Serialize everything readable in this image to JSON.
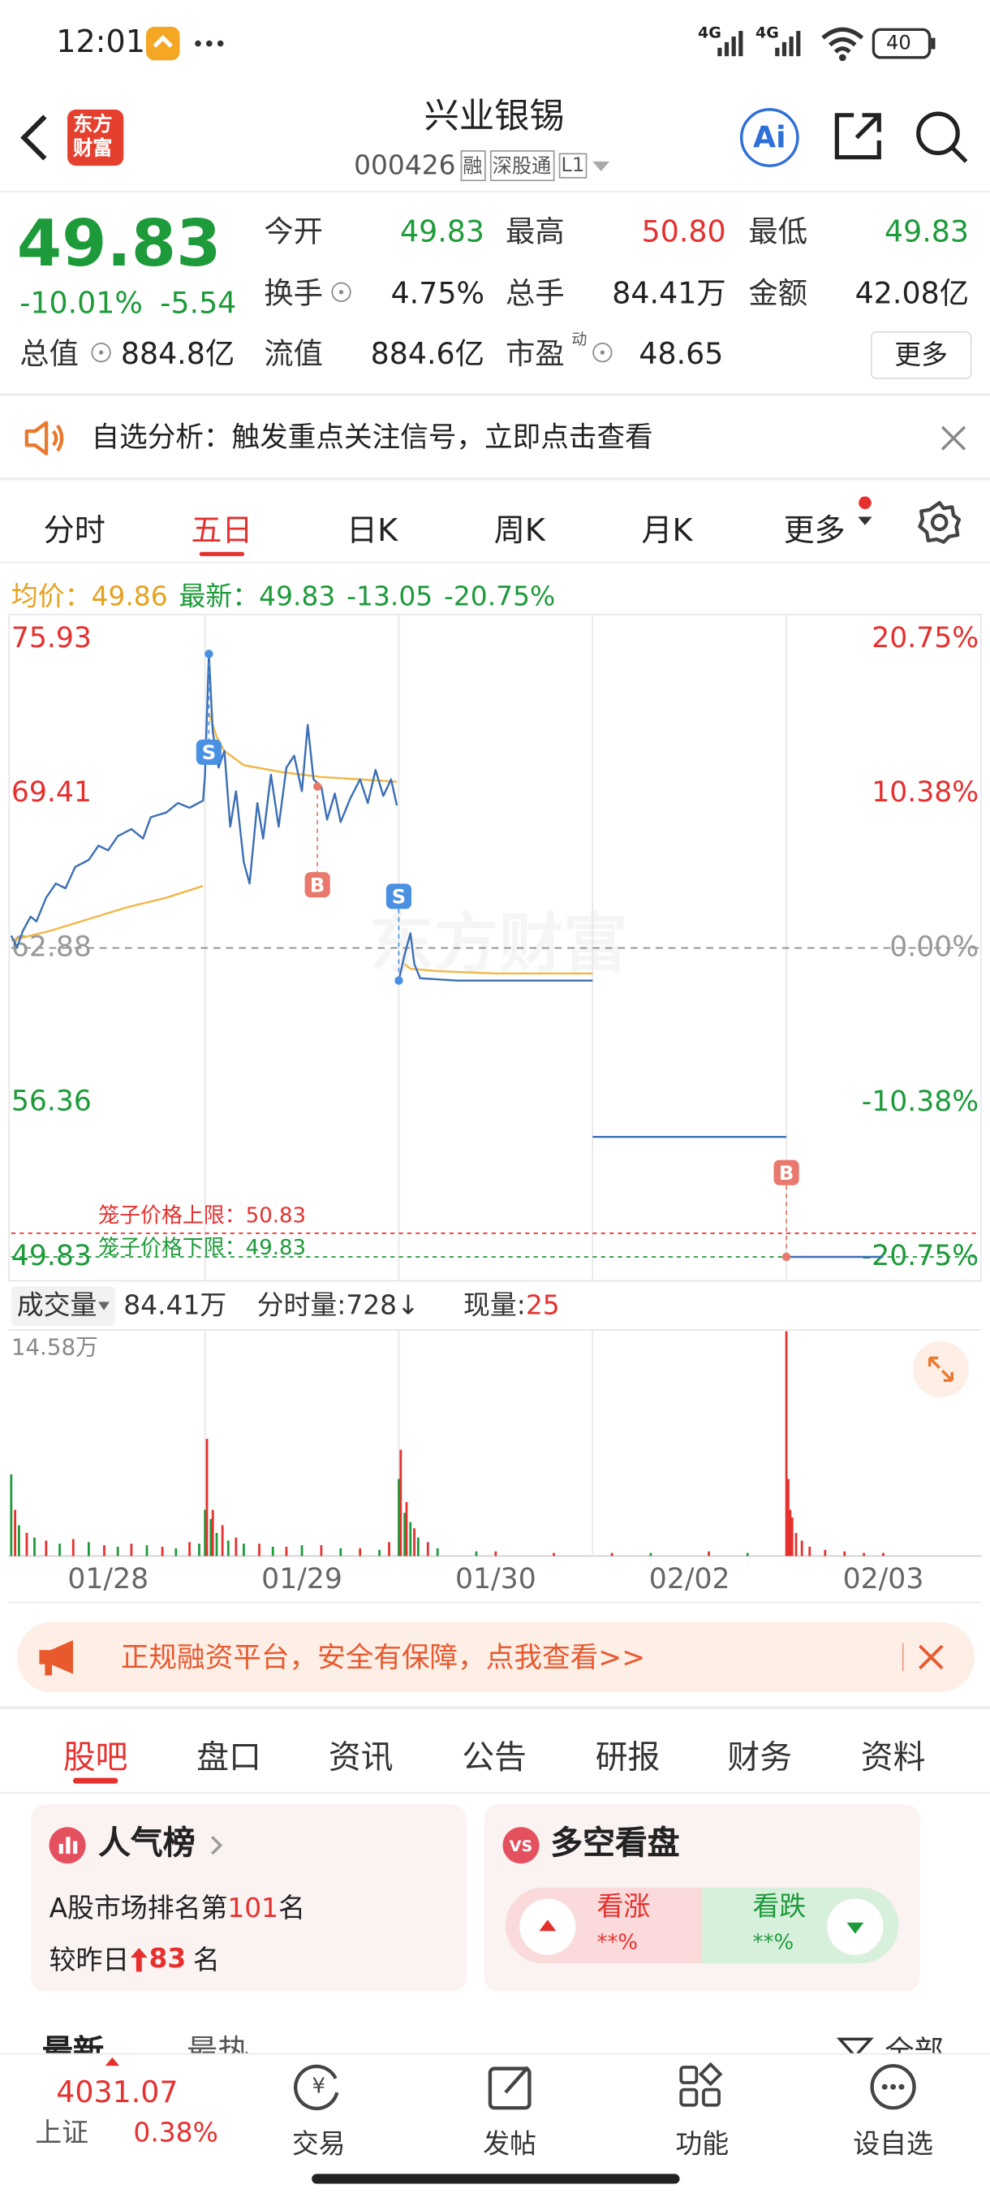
{
  "status_bar": {
    "time": "12:01",
    "network": [
      "4G",
      "4G"
    ],
    "battery": "40"
  },
  "header": {
    "logo": [
      "东方",
      "财富"
    ],
    "title": "兴业银锡",
    "code": "000426",
    "tags": [
      "融",
      "深股通",
      "L1"
    ],
    "ai": "Ai"
  },
  "quote": {
    "price": "49.83",
    "change_pct": "-10.01%",
    "change": "-5.54",
    "fields": [
      {
        "label": "今开",
        "value": "49.83"
      },
      {
        "label": "最高",
        "value": "50.80"
      },
      {
        "label": "最低",
        "value": "49.83"
      },
      {
        "label": "换手",
        "value": "4.75%"
      },
      {
        "label": "总手",
        "value": "84.41万"
      },
      {
        "label": "金额",
        "value": "42.08亿"
      },
      {
        "label": "总值",
        "value": "884.8亿"
      },
      {
        "label": "流值",
        "value": "884.6亿"
      },
      {
        "label": "市盈",
        "sup": "动",
        "value": "48.65"
      }
    ],
    "more": "更多"
  },
  "alert": "自选分析：触发重点关注信号，立即点击查看",
  "period_tabs": [
    "分时",
    "五日",
    "日K",
    "周K",
    "月K",
    "更多"
  ],
  "chart_data": [
    {
      "type": "line",
      "summary": [
        {
          "text": "均价：",
          "color": "#e6a11f"
        },
        {
          "text": "49.86",
          "color": "#e6a11f"
        },
        {
          "text": "最新：",
          "color": "#1d9a3a"
        },
        {
          "text": "49.83",
          "color": "#1d9a3a"
        },
        {
          "text": "-13.05",
          "color": "#1d9a3a"
        },
        {
          "text": "-20.75%",
          "color": "#1d9a3a"
        }
      ],
      "watermark": "东方财富",
      "xlim": [
        0,
        5
      ],
      "ylim": [
        49.83,
        75.93
      ],
      "yticks": [
        75.93,
        69.41,
        62.88,
        56.36,
        49.83
      ],
      "y2lim": [
        -20.75,
        20.75
      ],
      "y2ticks": [
        {
          "value": 20.75,
          "label": "20.75%"
        },
        {
          "value": 10.38,
          "label": "10.38%"
        },
        {
          "value": 0,
          "label": "0.00%"
        },
        {
          "value": -10.38,
          "label": "-10.38%"
        },
        {
          "value": -20.75,
          "label": "-20.75%"
        }
      ],
      "baseline": 62.88,
      "up_color": "#e5302e",
      "down_color": "#1d9a3a",
      "limits": [
        {
          "label": "笼子价格上限：50.83",
          "value": 50.83,
          "color": "#e5302e"
        },
        {
          "label": "笼子价格下限：49.83",
          "value": 49.83,
          "color": "#1d9a3a"
        }
      ],
      "series": [
        {
          "color": "#3b6fb6",
          "x": [
            0,
            0.03,
            0.06,
            0.1,
            0.13,
            0.18,
            0.23,
            0.28,
            0.33,
            0.4,
            0.45,
            0.5,
            0.55,
            0.62,
            0.68,
            0.72,
            0.8,
            0.86,
            0.92,
            0.99,
            1.0,
            1.02,
            1.04,
            1.07,
            1.1,
            1.13,
            1.16,
            1.2,
            1.23,
            1.27,
            1.3,
            1.34,
            1.38,
            1.42,
            1.46,
            1.5,
            1.53,
            1.56,
            1.6,
            1.63,
            1.67,
            1.7,
            1.75,
            1.8,
            1.84,
            1.88,
            1.92,
            1.96,
            1.99,
            2.0,
            2.0,
            2.03,
            2.06,
            2.08,
            2.11,
            2.3,
            3.0,
            3.0,
            3.0,
            4.0,
            4.0,
            4.0,
            4.5
          ],
          "values": [
            63.4,
            62.9,
            63.6,
            64.2,
            64.0,
            65.0,
            65.6,
            65.4,
            66.3,
            66.6,
            67.2,
            67.0,
            67.6,
            67.9,
            67.5,
            68.4,
            68.6,
            69.0,
            68.8,
            69.1,
            70.2,
            75.3,
            72.0,
            70.5,
            71.2,
            68.0,
            69.5,
            66.5,
            65.6,
            69.0,
            67.5,
            70.2,
            68.0,
            70.5,
            71.0,
            69.5,
            72.3,
            70.0,
            69.7,
            68.3,
            69.4,
            68.2,
            69.2,
            70.0,
            69.0,
            70.4,
            69.3,
            70.0,
            68.9,
            null,
            61.5,
            62.6,
            63.5,
            62.2,
            61.6,
            61.5,
            61.5,
            null,
            54.9,
            54.9,
            null,
            49.83,
            49.83
          ]
        },
        {
          "color": "#f0b848",
          "x": [
            0,
            0.2,
            0.4,
            0.6,
            0.8,
            0.99,
            1.0,
            1.02,
            1.06,
            1.1,
            1.2,
            1.4,
            1.6,
            1.8,
            1.99,
            2.0,
            2.03,
            2.06,
            2.2,
            2.5,
            3.0
          ],
          "values": [
            63.2,
            63.6,
            64.1,
            64.6,
            65.0,
            65.5,
            null,
            72.8,
            71.8,
            71.2,
            70.6,
            70.3,
            70.1,
            70.0,
            69.9,
            null,
            62.2,
            62.0,
            61.9,
            61.8,
            61.8
          ]
        }
      ],
      "markers": [
        {
          "label": "S",
          "x": 1.02,
          "y": 75.3,
          "color": "#4a90e2",
          "side": "below"
        },
        {
          "label": "B",
          "x": 1.58,
          "y": 69.7,
          "color": "#e8796c",
          "side": "below"
        },
        {
          "label": "S",
          "x": 2.0,
          "y": 61.5,
          "color": "#4a90e2",
          "side": "above"
        },
        {
          "label": "B",
          "x": 4.0,
          "y": 49.83,
          "color": "#e8796c",
          "side": "above"
        }
      ]
    },
    {
      "type": "bar",
      "header": [
        {
          "text": "成交量",
          "color": "#333"
        },
        {
          "text": "84.41万",
          "color": "#333"
        },
        {
          "text": "分时量:728↓",
          "color": "#333"
        },
        {
          "text": "现量:",
          "color": "#333"
        },
        {
          "text": "25",
          "color": "#e5302e"
        }
      ],
      "xlim": [
        0,
        5
      ],
      "ylim": [
        0,
        14.58
      ],
      "yticks": [
        {
          "value": 14.58,
          "label": "14.58万"
        }
      ],
      "xticks": [
        {
          "value": 0.5,
          "label": "01/28"
        },
        {
          "value": 1.5,
          "label": "01/29"
        },
        {
          "value": 2.5,
          "label": "01/30"
        },
        {
          "value": 3.5,
          "label": "02/02"
        },
        {
          "value": 4.5,
          "label": "02/03"
        }
      ],
      "series": [
        {
          "color": "#1d9a3a",
          "x": [
            0.0,
            0.04,
            0.12,
            0.25,
            0.4,
            0.55,
            0.7,
            0.85,
            0.97,
            1.0,
            1.03,
            1.06,
            1.12,
            1.2,
            1.35,
            1.5,
            1.7,
            1.9,
            2.0,
            2.03,
            2.06,
            2.1,
            2.2,
            2.4,
            3.3,
            3.8
          ],
          "values": [
            5.3,
            2.0,
            1.2,
            0.8,
            0.9,
            0.6,
            0.7,
            0.5,
            0.8,
            3.0,
            2.4,
            1.5,
            1.0,
            0.8,
            0.6,
            0.7,
            0.5,
            0.4,
            5.0,
            2.8,
            2.2,
            1.2,
            0.5,
            0.3,
            0.2,
            0.2
          ]
        },
        {
          "color": "#e5302e",
          "x": [
            0.02,
            0.08,
            0.18,
            0.32,
            0.48,
            0.62,
            0.78,
            0.92,
            1.01,
            1.04,
            1.09,
            1.16,
            1.28,
            1.42,
            1.6,
            1.8,
            1.95,
            2.01,
            2.04,
            2.08,
            2.15,
            2.5,
            2.8,
            3.1,
            3.6,
            4.0,
            4.01,
            4.02,
            4.03,
            4.05,
            4.08,
            4.12,
            4.2,
            4.3,
            4.4,
            4.5
          ],
          "values": [
            3.0,
            1.5,
            1.0,
            1.1,
            0.7,
            0.8,
            0.6,
            0.9,
            7.6,
            3.0,
            2.0,
            1.2,
            0.8,
            0.6,
            0.7,
            0.5,
            0.9,
            6.9,
            3.5,
            1.8,
            0.9,
            0.3,
            0.2,
            0.2,
            0.3,
            14.58,
            5.0,
            3.0,
            2.5,
            1.5,
            1.0,
            0.6,
            0.4,
            0.3,
            0.2,
            0.2
          ]
        }
      ]
    }
  ],
  "promo": "正规融资平台，安全有保障，点我查看>>",
  "section_tabs": [
    "股吧",
    "盘口",
    "资讯",
    "公告",
    "研报",
    "财务",
    "资料"
  ],
  "popularity": {
    "title": "人气榜",
    "rank_prefix": "A股市场排名第",
    "rank": "101",
    "rank_suffix": "名",
    "change_prefix": "较昨日",
    "change": "83",
    "change_suffix": "名"
  },
  "sentiment": {
    "title": "多空看盘",
    "bull": "看涨",
    "bull_pct": "**%",
    "bear": "看跌",
    "bear_pct": "**%"
  },
  "feed_tabs": [
    "最新",
    "最热",
    "全部"
  ],
  "index": {
    "value": "4031.07",
    "name": "上证",
    "change": "0.38%"
  },
  "nav": [
    "交易",
    "发帖",
    "功能",
    "设自选"
  ]
}
